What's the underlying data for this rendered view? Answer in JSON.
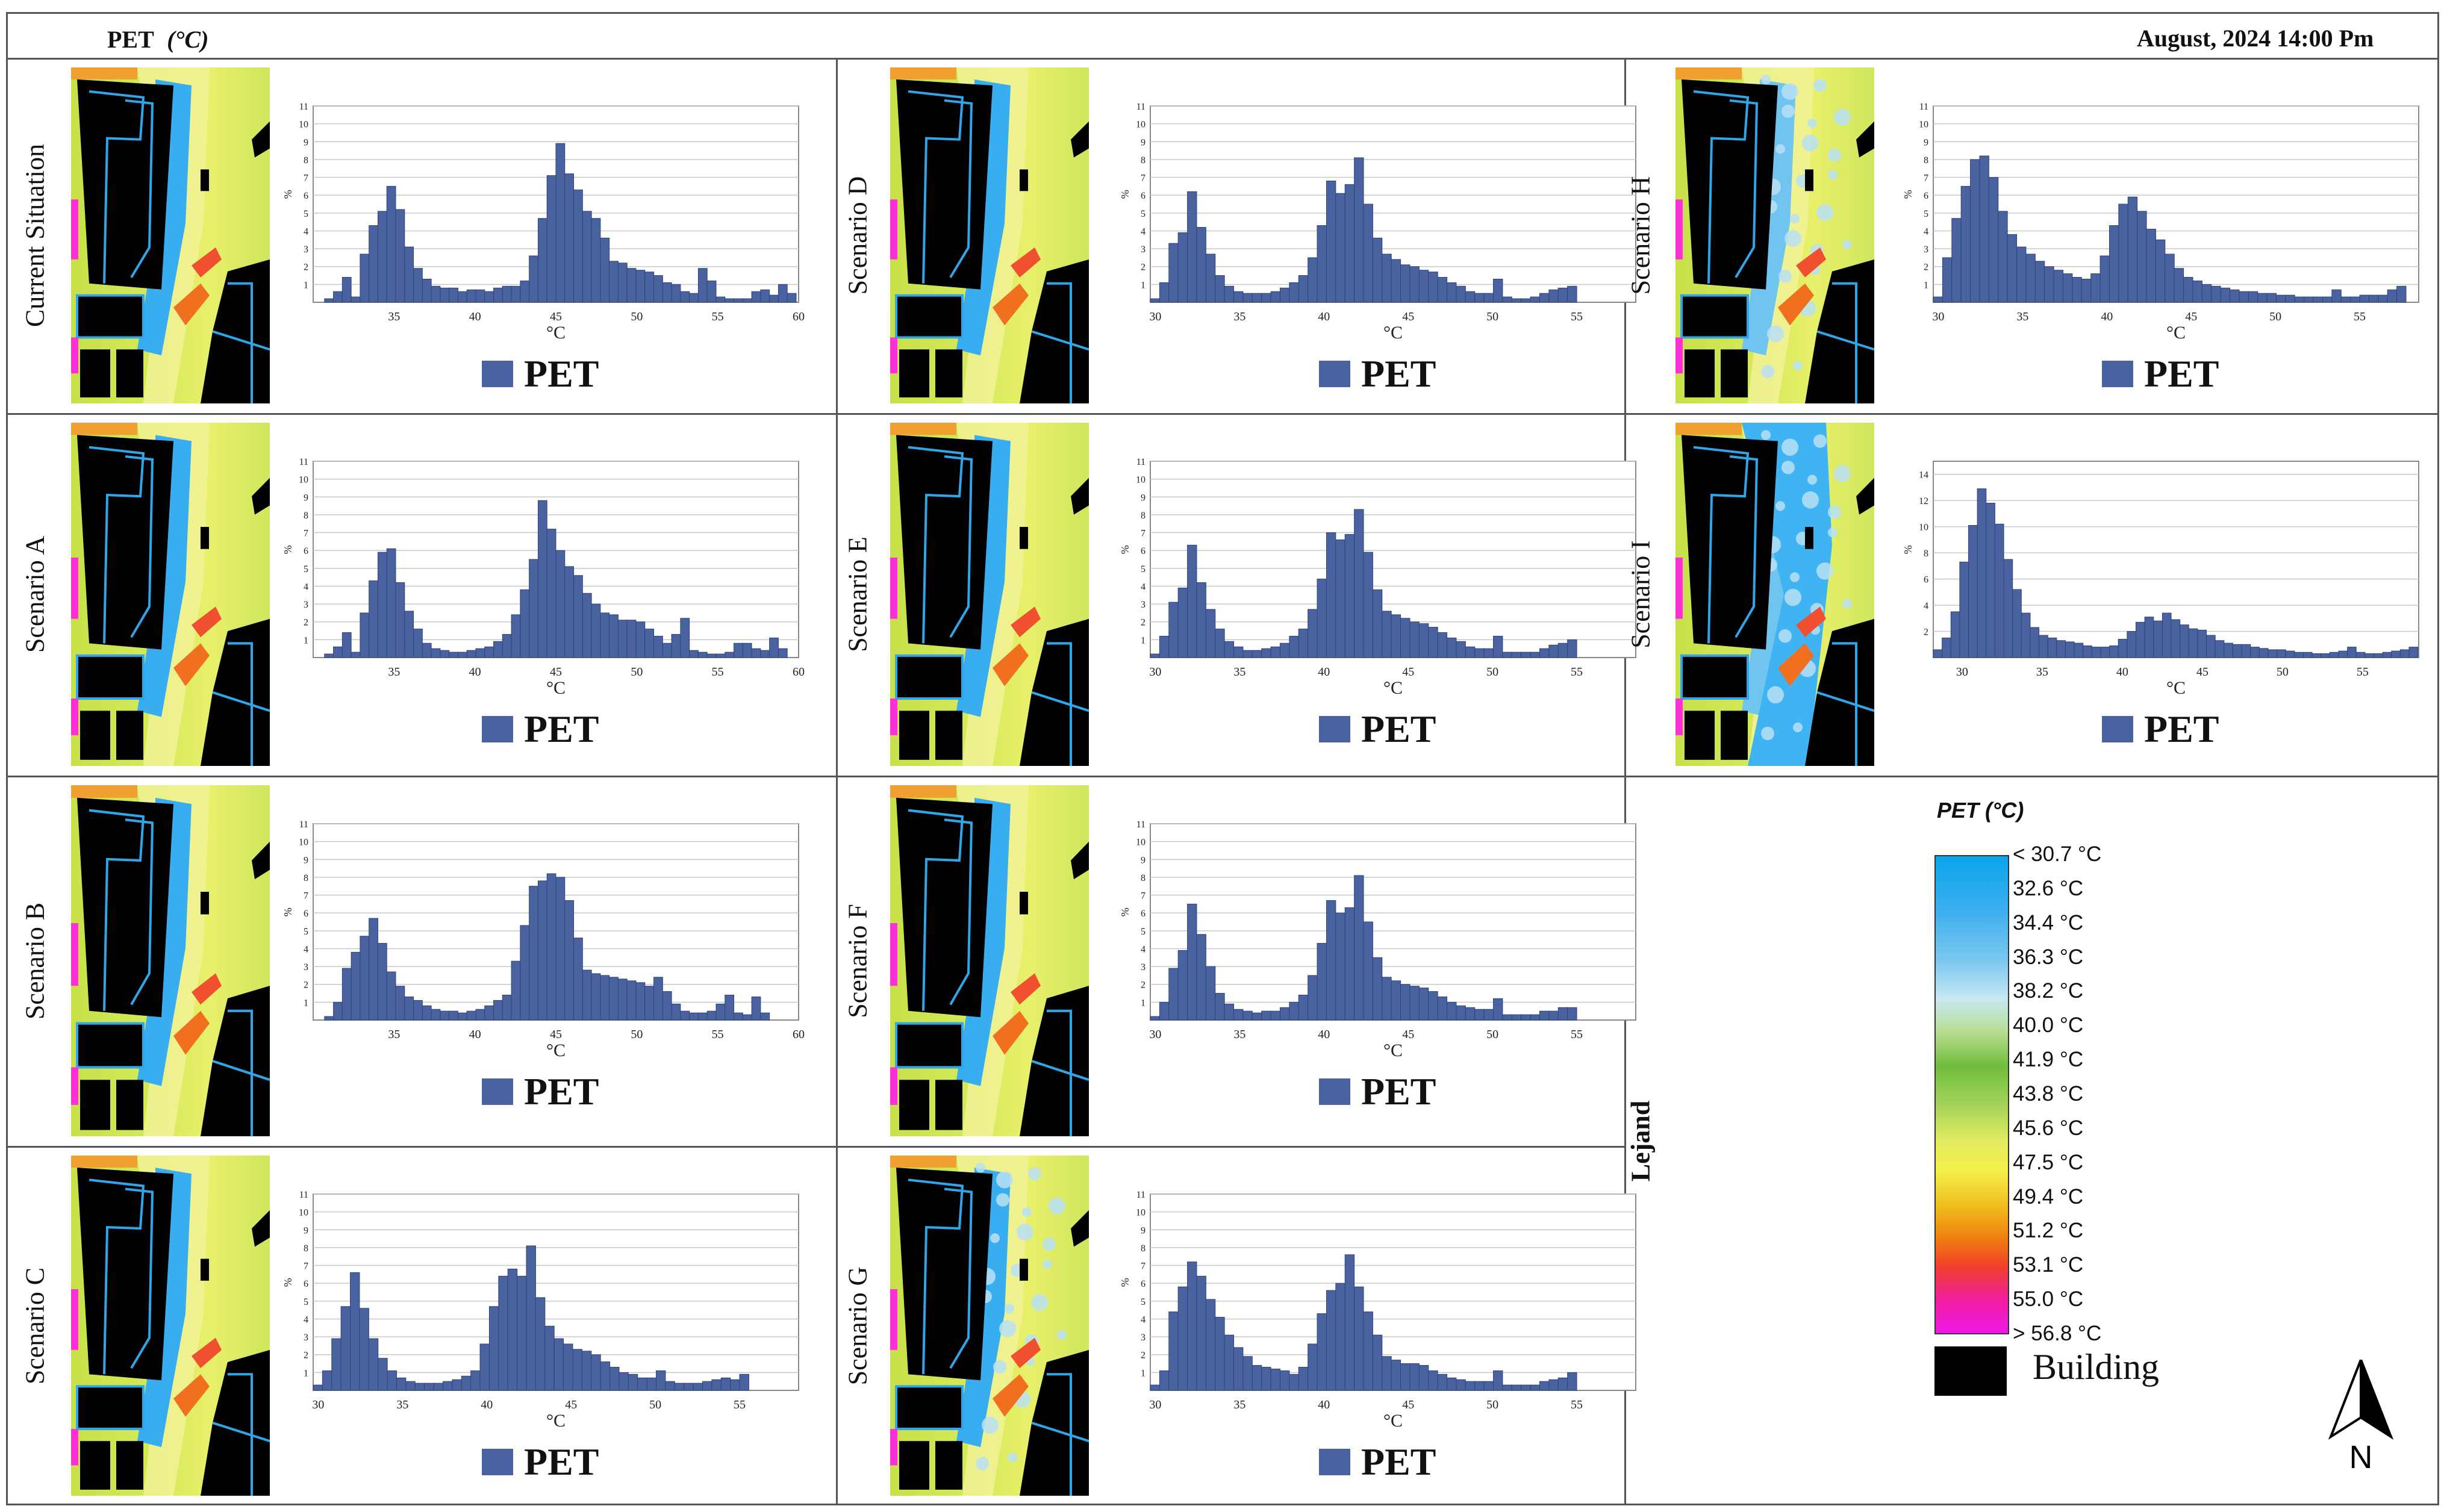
{
  "header": {
    "left": "PET",
    "left_unit": "(°C)",
    "right": "August, 2024  14:00 Pm"
  },
  "legend_label": "PET",
  "side_label": "Lejand",
  "colorbar": {
    "title": "PET (°C)",
    "labels": [
      "< 30.7 °C",
      "32.6  °C",
      "34.4  °C",
      "36.3  °C",
      "38.2  °C",
      "40.0  °C",
      "41.9  °C",
      "43.8  °C",
      "45.6  °C",
      "47.5  °C",
      "49.4  °C",
      "51.2  °C",
      "53.1  °C",
      "55.0  °C",
      "> 56.8 °C"
    ],
    "building_label": "Building"
  },
  "north_label": "N",
  "colors": {
    "bar": "#4a63a0",
    "bar_edge": "#2e4478",
    "grid": "#c8c8c8"
  },
  "chart_data": [
    {
      "type": "bar",
      "scenario": "Current Situation",
      "ylabel": "%",
      "xlabel": "°C",
      "ylim": [
        0,
        11
      ],
      "yticks": [
        1,
        2,
        3,
        4,
        5,
        6,
        7,
        8,
        9,
        10,
        11
      ],
      "xlim": [
        30,
        60
      ],
      "xticks": [
        35,
        40,
        45,
        50,
        55,
        60
      ],
      "x_start": 30.7,
      "bin_width": 0.55,
      "values": [
        0.2,
        0.6,
        1.4,
        0.3,
        2.7,
        4.3,
        5.1,
        6.5,
        5.2,
        3.1,
        1.9,
        1.3,
        0.9,
        0.8,
        0.8,
        0.6,
        0.7,
        0.7,
        0.6,
        0.8,
        0.9,
        0.9,
        1.2,
        2.6,
        4.7,
        7.1,
        8.9,
        7.2,
        6.3,
        5.1,
        4.7,
        3.6,
        2.3,
        2.2,
        1.9,
        1.8,
        1.7,
        1.5,
        1.1,
        1.0,
        0.6,
        0.5,
        1.9,
        1.2,
        0.3,
        0.2,
        0.2,
        0.2,
        0.6,
        0.7,
        0.4,
        1.0,
        0.5
      ]
    },
    {
      "type": "bar",
      "scenario": "Scenario A",
      "ylabel": "%",
      "xlabel": "°C",
      "ylim": [
        0,
        11
      ],
      "yticks": [
        1,
        2,
        3,
        4,
        5,
        6,
        7,
        8,
        9,
        10,
        11
      ],
      "xlim": [
        30,
        60
      ],
      "xticks": [
        35,
        40,
        45,
        50,
        55,
        60
      ],
      "x_start": 30.7,
      "bin_width": 0.55,
      "values": [
        0.2,
        0.6,
        1.4,
        0.3,
        2.5,
        4.3,
        5.9,
        6.1,
        4.2,
        2.6,
        1.6,
        0.8,
        0.5,
        0.4,
        0.3,
        0.3,
        0.4,
        0.5,
        0.6,
        0.9,
        1.3,
        2.4,
        3.8,
        5.5,
        8.8,
        7.2,
        6.0,
        5.1,
        4.6,
        3.6,
        3.0,
        2.5,
        2.4,
        2.1,
        2.1,
        2.0,
        1.6,
        1.2,
        0.8,
        1.3,
        2.2,
        0.4,
        0.3,
        0.2,
        0.2,
        0.3,
        0.8,
        0.8,
        0.5,
        0.4,
        1.1,
        0.5
      ]
    },
    {
      "type": "bar",
      "scenario": "Scenario B",
      "ylabel": "%",
      "xlabel": "°C",
      "ylim": [
        0,
        11
      ],
      "yticks": [
        1,
        2,
        3,
        4,
        5,
        6,
        7,
        8,
        9,
        10,
        11
      ],
      "xlim": [
        30,
        60
      ],
      "xticks": [
        35,
        40,
        45,
        50,
        55,
        60
      ],
      "x_start": 30.7,
      "bin_width": 0.55,
      "values": [
        0.2,
        1.0,
        2.9,
        3.8,
        4.7,
        5.7,
        4.3,
        2.7,
        1.9,
        1.3,
        1.1,
        0.8,
        0.6,
        0.5,
        0.5,
        0.4,
        0.5,
        0.6,
        0.8,
        1.1,
        1.4,
        3.3,
        5.3,
        7.5,
        7.8,
        8.2,
        8.0,
        6.7,
        4.6,
        2.8,
        2.6,
        2.5,
        2.4,
        2.3,
        2.2,
        2.1,
        1.9,
        2.4,
        1.6,
        0.9,
        0.5,
        0.4,
        0.4,
        0.5,
        0.9,
        1.4,
        0.4,
        0.3,
        1.3,
        0.4
      ]
    },
    {
      "type": "bar",
      "scenario": "Scenario C",
      "ylabel": "%",
      "xlabel": "°C",
      "ylim": [
        0,
        11
      ],
      "yticks": [
        1,
        2,
        3,
        4,
        5,
        6,
        7,
        8,
        9,
        10,
        11
      ],
      "xlim": [
        29.7,
        58.5
      ],
      "xticks": [
        30,
        35,
        40,
        45,
        50,
        55
      ],
      "x_start": 29.7,
      "bin_width": 0.55,
      "values": [
        0.3,
        1.1,
        2.9,
        4.7,
        6.6,
        4.6,
        2.9,
        1.8,
        1.1,
        0.7,
        0.5,
        0.4,
        0.4,
        0.4,
        0.5,
        0.6,
        0.8,
        1.1,
        2.6,
        4.7,
        6.4,
        6.8,
        6.4,
        8.1,
        5.2,
        3.6,
        2.9,
        2.6,
        2.3,
        2.2,
        2.0,
        1.6,
        1.3,
        1.0,
        0.9,
        0.7,
        0.7,
        1.1,
        0.5,
        0.4,
        0.4,
        0.4,
        0.5,
        0.6,
        0.7,
        0.6,
        0.9
      ]
    },
    {
      "type": "bar",
      "scenario": "Scenario D",
      "ylabel": "%",
      "xlabel": "°C",
      "ylim": [
        0,
        11
      ],
      "yticks": [
        1,
        2,
        3,
        4,
        5,
        6,
        7,
        8,
        9,
        10,
        11
      ],
      "xlim": [
        29.7,
        58.5
      ],
      "xticks": [
        30,
        35,
        40,
        45,
        50,
        55
      ],
      "x_start": 29.7,
      "bin_width": 0.55,
      "values": [
        0.2,
        1.1,
        3.3,
        3.9,
        6.2,
        4.2,
        2.7,
        1.5,
        0.9,
        0.6,
        0.5,
        0.5,
        0.5,
        0.6,
        0.8,
        1.1,
        1.5,
        2.5,
        4.3,
        6.8,
        6.1,
        6.6,
        8.1,
        5.5,
        3.6,
        2.7,
        2.4,
        2.1,
        2.0,
        1.8,
        1.7,
        1.4,
        1.1,
        0.9,
        0.6,
        0.5,
        0.5,
        1.3,
        0.3,
        0.2,
        0.2,
        0.3,
        0.5,
        0.7,
        0.8,
        0.9
      ]
    },
    {
      "type": "bar",
      "scenario": "Scenario E",
      "ylabel": "%",
      "xlabel": "°C",
      "ylim": [
        0,
        11
      ],
      "yticks": [
        1,
        2,
        3,
        4,
        5,
        6,
        7,
        8,
        9,
        10,
        11
      ],
      "xlim": [
        29.7,
        58.5
      ],
      "xticks": [
        30,
        35,
        40,
        45,
        50,
        55
      ],
      "x_start": 29.7,
      "bin_width": 0.55,
      "values": [
        0.2,
        1.2,
        3.1,
        3.9,
        6.3,
        4.2,
        2.7,
        1.6,
        0.9,
        0.6,
        0.4,
        0.4,
        0.5,
        0.6,
        0.8,
        1.2,
        1.6,
        2.7,
        4.4,
        7.0,
        6.6,
        6.9,
        8.3,
        5.9,
        3.8,
        2.6,
        2.4,
        2.2,
        2.0,
        1.9,
        1.7,
        1.4,
        1.1,
        0.9,
        0.6,
        0.5,
        0.5,
        1.2,
        0.3,
        0.3,
        0.3,
        0.3,
        0.5,
        0.7,
        0.8,
        1.0
      ]
    },
    {
      "type": "bar",
      "scenario": "Scenario F",
      "ylabel": "%",
      "xlabel": "°C",
      "ylim": [
        0,
        11
      ],
      "yticks": [
        1,
        2,
        3,
        4,
        5,
        6,
        7,
        8,
        9,
        10,
        11
      ],
      "xlim": [
        29.7,
        58.5
      ],
      "xticks": [
        30,
        35,
        40,
        45,
        50,
        55
      ],
      "x_start": 29.7,
      "bin_width": 0.55,
      "values": [
        0.2,
        1.0,
        2.9,
        3.9,
        6.5,
        4.8,
        3.0,
        1.5,
        0.9,
        0.6,
        0.5,
        0.4,
        0.5,
        0.5,
        0.7,
        1.0,
        1.4,
        2.5,
        4.3,
        6.7,
        6.0,
        6.3,
        8.1,
        5.5,
        3.5,
        2.4,
        2.2,
        2.0,
        1.9,
        1.8,
        1.6,
        1.3,
        1.0,
        0.8,
        0.7,
        0.6,
        0.6,
        1.2,
        0.3,
        0.3,
        0.3,
        0.3,
        0.5,
        0.5,
        0.7,
        0.7
      ]
    },
    {
      "type": "bar",
      "scenario": "Scenario G",
      "ylabel": "%",
      "xlabel": "°C",
      "ylim": [
        0,
        11
      ],
      "yticks": [
        1,
        2,
        3,
        4,
        5,
        6,
        7,
        8,
        9,
        10,
        11
      ],
      "xlim": [
        29.7,
        58.5
      ],
      "xticks": [
        30,
        35,
        40,
        45,
        50,
        55
      ],
      "x_start": 29.7,
      "bin_width": 0.55,
      "values": [
        0.3,
        1.1,
        4.4,
        5.8,
        7.2,
        6.4,
        5.1,
        4.1,
        3.1,
        2.4,
        1.9,
        1.4,
        1.3,
        1.2,
        1.1,
        0.9,
        1.3,
        2.6,
        4.3,
        5.6,
        6.0,
        7.6,
        5.8,
        4.4,
        3.1,
        1.9,
        1.7,
        1.5,
        1.5,
        1.4,
        1.1,
        0.9,
        0.7,
        0.6,
        0.5,
        0.5,
        0.5,
        1.1,
        0.3,
        0.3,
        0.3,
        0.3,
        0.5,
        0.6,
        0.7,
        1.0
      ]
    },
    {
      "type": "bar",
      "scenario": "Scenario H",
      "ylabel": "%",
      "xlabel": "°C",
      "ylim": [
        0,
        11
      ],
      "yticks": [
        1,
        2,
        3,
        4,
        5,
        6,
        7,
        8,
        9,
        10,
        11
      ],
      "xlim": [
        29.7,
        58.5
      ],
      "xticks": [
        30,
        35,
        40,
        45,
        50,
        55
      ],
      "x_start": 29.7,
      "bin_width": 0.55,
      "values": [
        0.3,
        2.5,
        4.7,
        6.5,
        8.0,
        8.2,
        7.0,
        5.1,
        3.8,
        3.1,
        2.7,
        2.3,
        2.0,
        1.8,
        1.6,
        1.4,
        1.3,
        1.6,
        2.6,
        4.3,
        5.5,
        5.9,
        5.1,
        4.1,
        3.5,
        2.7,
        1.9,
        1.4,
        1.2,
        1.0,
        0.9,
        0.8,
        0.7,
        0.6,
        0.6,
        0.5,
        0.5,
        0.4,
        0.4,
        0.3,
        0.3,
        0.3,
        0.3,
        0.7,
        0.3,
        0.3,
        0.4,
        0.4,
        0.4,
        0.7,
        0.9
      ]
    },
    {
      "type": "bar",
      "scenario": "Scenario I",
      "ylabel": "%",
      "xlabel": "°C",
      "ylim": [
        0,
        15
      ],
      "yticks": [
        2,
        4,
        6,
        8,
        10,
        12,
        14
      ],
      "xlim": [
        28.2,
        58.5
      ],
      "xticks": [
        30,
        35,
        40,
        45,
        50,
        55
      ],
      "x_start": 28.2,
      "bin_width": 0.55,
      "values": [
        0.6,
        1.5,
        3.5,
        7.3,
        10.1,
        12.9,
        11.8,
        10.2,
        7.5,
        5.2,
        3.4,
        2.3,
        1.7,
        1.5,
        1.3,
        1.2,
        1.1,
        0.9,
        0.8,
        0.8,
        0.9,
        1.4,
        2.0,
        2.7,
        3.1,
        2.8,
        3.4,
        2.9,
        2.5,
        2.2,
        2.1,
        1.7,
        1.3,
        1.1,
        1.0,
        1.0,
        0.8,
        0.7,
        0.6,
        0.6,
        0.5,
        0.4,
        0.4,
        0.3,
        0.3,
        0.4,
        0.5,
        0.8,
        0.4,
        0.3,
        0.3,
        0.4,
        0.5,
        0.6,
        0.8
      ]
    }
  ]
}
